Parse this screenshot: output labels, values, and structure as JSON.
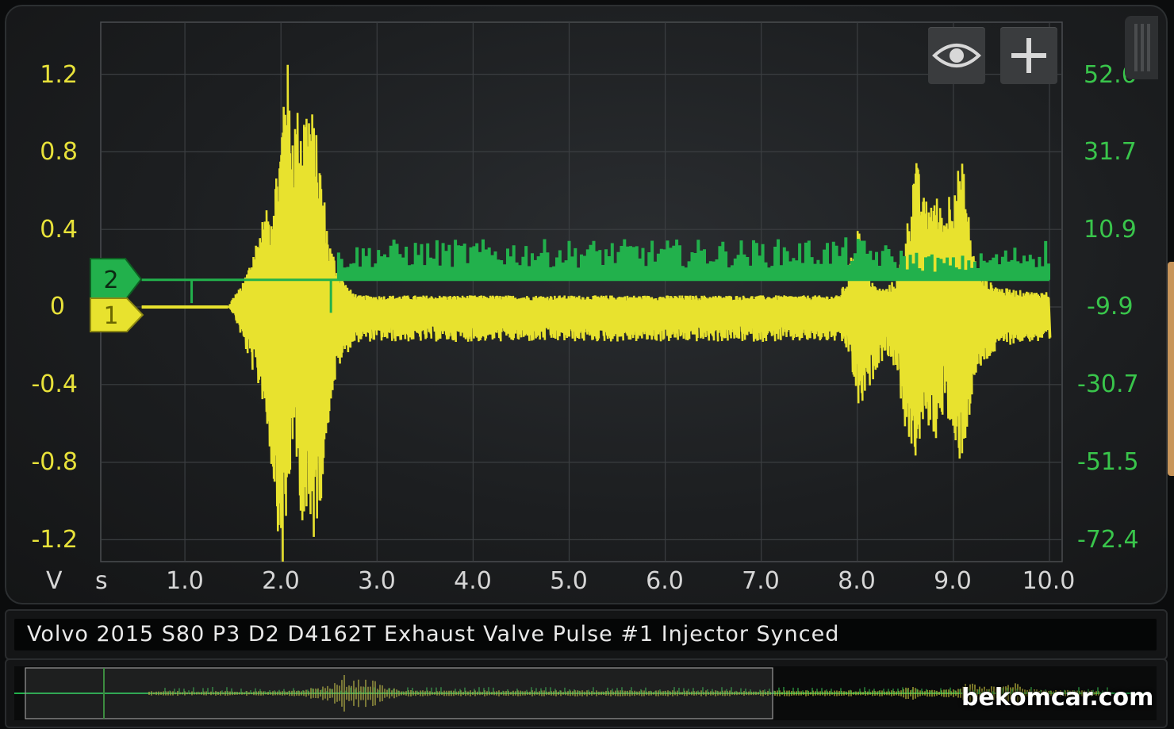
{
  "app": {
    "watermark": "bekomcar.com"
  },
  "title_bar": {
    "text": "Volvo 2015 S80 P3 D2 D4162T Exhaust Valve Pulse  #1 Injector Synced"
  },
  "controls": {
    "visibility_icon": "eye-icon",
    "add_icon": "plus-icon"
  },
  "colors": {
    "channel1": "#e8e22e",
    "channel2": "#22b14c",
    "grid": "#4a4d50",
    "background": "#1c1e20"
  },
  "channels": [
    {
      "number": "1",
      "color": "#e8e22e"
    },
    {
      "number": "2",
      "color": "#22b14c"
    }
  ],
  "chart_data": {
    "type": "line",
    "title": "Volvo 2015 S80 P3 D2 D4162T Exhaust Valve Pulse  #1 Injector Synced",
    "xlabel": "s",
    "ylabel": "V",
    "xlim": [
      0.0,
      10.0
    ],
    "ylim_left": [
      -1.4,
      1.4
    ],
    "x_ticks": [
      "1.0",
      "2.0",
      "3.0",
      "4.0",
      "5.0",
      "6.0",
      "7.0",
      "8.0",
      "9.0",
      "10.0"
    ],
    "y_ticks_left": [
      "1.2",
      "0.8",
      "0.4",
      "0",
      "-0.4",
      "-0.8",
      "-1.2"
    ],
    "y_ticks_right": [
      "52.6",
      "31.7",
      "10.9",
      "-9.9",
      "-30.7",
      "-51.5",
      "-72.4"
    ],
    "grid": true,
    "series": [
      {
        "channel": "1",
        "axis": "left",
        "envelope_x": [
          0.0,
          1.45,
          1.5,
          1.6,
          1.7,
          1.8,
          1.9,
          2.0,
          2.05,
          2.1,
          2.2,
          2.3,
          2.4,
          2.5,
          2.6,
          2.7,
          2.8,
          3.0,
          3.5,
          4.0,
          5.0,
          6.0,
          7.0,
          7.8,
          7.9,
          8.0,
          8.1,
          8.2,
          8.3,
          8.4,
          8.5,
          8.6,
          8.7,
          8.8,
          8.9,
          9.0,
          9.1,
          9.2,
          9.3,
          9.5,
          9.8,
          10.0
        ],
        "envelope_max": [
          0.0,
          0.0,
          0.05,
          0.12,
          0.28,
          0.45,
          0.55,
          0.9,
          1.45,
          1.0,
          1.05,
          1.1,
          0.8,
          0.35,
          0.2,
          0.1,
          0.06,
          0.06,
          0.06,
          0.06,
          0.06,
          0.06,
          0.06,
          0.06,
          0.15,
          0.45,
          0.2,
          0.1,
          0.1,
          0.15,
          0.35,
          0.8,
          0.55,
          0.6,
          0.5,
          0.7,
          0.75,
          0.3,
          0.15,
          0.1,
          0.08,
          0.08
        ],
        "envelope_min": [
          0.0,
          0.0,
          -0.05,
          -0.2,
          -0.35,
          -0.5,
          -0.9,
          -1.4,
          -1.2,
          -0.7,
          -1.1,
          -1.3,
          -1.0,
          -0.5,
          -0.3,
          -0.22,
          -0.18,
          -0.18,
          -0.18,
          -0.18,
          -0.18,
          -0.18,
          -0.18,
          -0.18,
          -0.25,
          -0.55,
          -0.45,
          -0.3,
          -0.25,
          -0.35,
          -0.7,
          -0.8,
          -0.6,
          -0.7,
          -0.5,
          -0.85,
          -0.75,
          -0.4,
          -0.3,
          -0.2,
          -0.18,
          -0.2
        ]
      },
      {
        "channel": "2",
        "axis": "left",
        "baseline": 0.14,
        "envelope_x": [
          0.0,
          1.0,
          1.05,
          1.1,
          2.0,
          2.2,
          2.5,
          2.6,
          3.0,
          4.0,
          5.0,
          6.0,
          7.0,
          8.0,
          8.5,
          9.0,
          9.5,
          10.0
        ],
        "envelope_max": [
          0.14,
          0.14,
          0.14,
          0.14,
          0.14,
          0.3,
          0.22,
          0.3,
          0.35,
          0.35,
          0.35,
          0.35,
          0.35,
          0.36,
          0.3,
          0.26,
          0.3,
          0.36
        ],
        "envelope_min": [
          0.14,
          0.14,
          0.02,
          0.14,
          0.14,
          0.12,
          0.05,
          0.12,
          0.12,
          0.12,
          0.12,
          0.12,
          0.12,
          0.12,
          0.12,
          0.12,
          0.12,
          0.12
        ]
      }
    ]
  }
}
